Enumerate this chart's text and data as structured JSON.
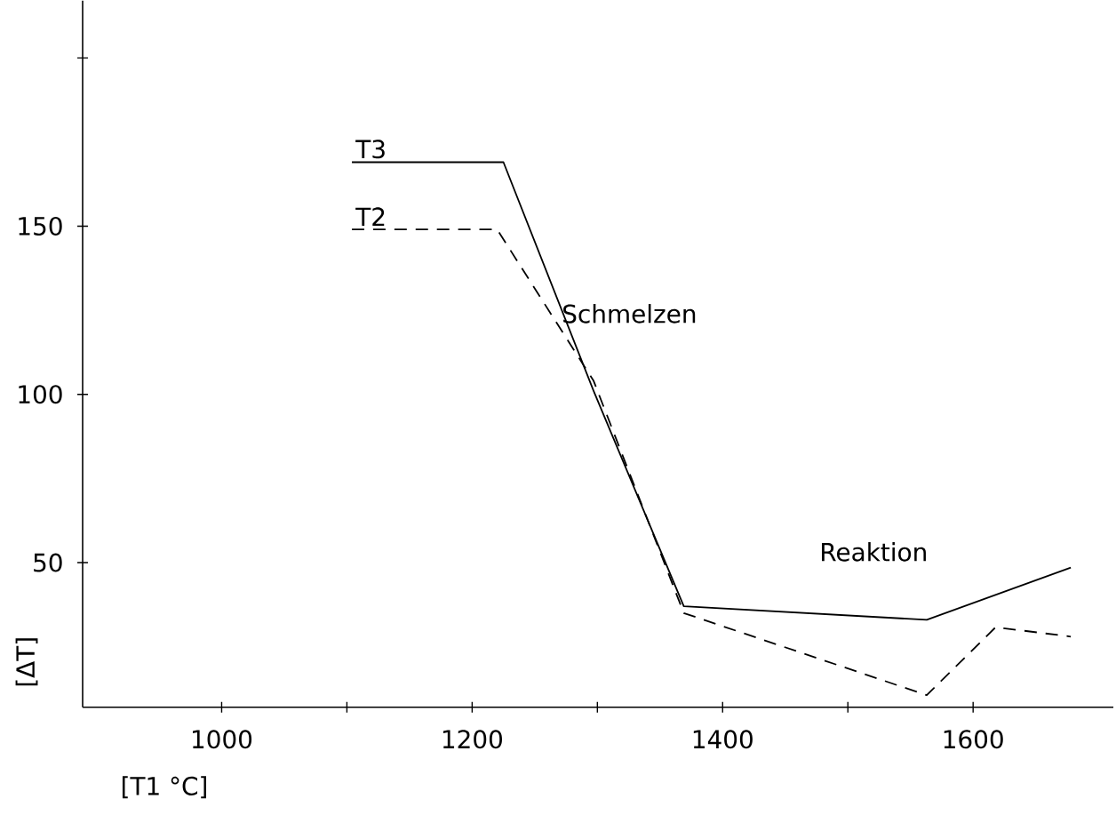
{
  "chart_data": {
    "type": "line",
    "xlabel": "[T1 °C]",
    "ylabel": "[ΔT]",
    "xlim": [
      889,
      1712
    ],
    "ylim": [
      7,
      217
    ],
    "xticks": [
      1000,
      {
        "value": 1100,
        "label": null
      },
      1200,
      {
        "value": 1300,
        "label": null
      },
      1400,
      {
        "value": 1500,
        "label": null
      },
      1600
    ],
    "yticks": [
      50,
      100,
      150,
      {
        "value": 200,
        "label": null
      }
    ],
    "grid": false,
    "marker": "none",
    "series": [
      {
        "name": "T3",
        "color": "#000000",
        "line_style": "solid",
        "x": [
          1104,
          1225,
          1297,
          1369,
          1563,
          1678
        ],
        "values": [
          169,
          169,
          101,
          37,
          33,
          48.5
        ]
      },
      {
        "name": "T2",
        "color": "#000000",
        "line_style": "dashed",
        "x": [
          1104,
          1220,
          1297,
          1369,
          1563,
          1618,
          1678
        ],
        "values": [
          149,
          149,
          104,
          35,
          10.6,
          30.8,
          28
        ]
      }
    ],
    "annotations": [
      {
        "text": "Schmelzen",
        "x": 1270,
        "y": 124
      },
      "Reaktion"
    ]
  }
}
